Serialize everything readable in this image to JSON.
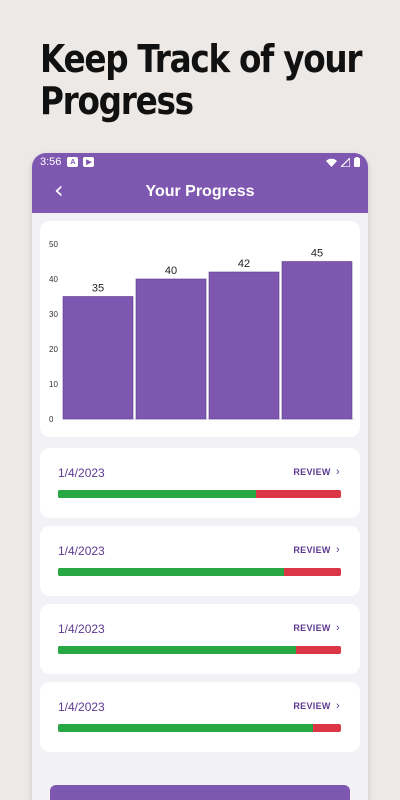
{
  "headline": [
    "Keep Track of your",
    "Progress"
  ],
  "status_bar": {
    "time": "3:56",
    "notif_icons": [
      "A",
      "▶"
    ],
    "icons": [
      "wifi-icon",
      "signal-icon",
      "battery-icon"
    ]
  },
  "app_bar": {
    "title": "Your Progress",
    "back_icon": "chevron-left-icon"
  },
  "chart_data": {
    "type": "bar",
    "categories": [
      "",
      "",
      "",
      ""
    ],
    "values": [
      35,
      40,
      42,
      45
    ],
    "ylim": [
      0,
      50
    ],
    "yticks": [
      0,
      10,
      20,
      30,
      40,
      50
    ],
    "bar_color": "#7e57b0",
    "data_labels": true,
    "grid": false
  },
  "results": [
    {
      "date": "1/4/2023",
      "review_label": "REVIEW",
      "correct_fraction": 0.7
    },
    {
      "date": "1/4/2023",
      "review_label": "REVIEW",
      "correct_fraction": 0.8
    },
    {
      "date": "1/4/2023",
      "review_label": "REVIEW",
      "correct_fraction": 0.84
    },
    {
      "date": "1/4/2023",
      "review_label": "REVIEW",
      "correct_fraction": 0.9
    }
  ],
  "colors": {
    "primary": "#7e57b0",
    "correct": "#28a745",
    "incorrect": "#dc3545"
  }
}
